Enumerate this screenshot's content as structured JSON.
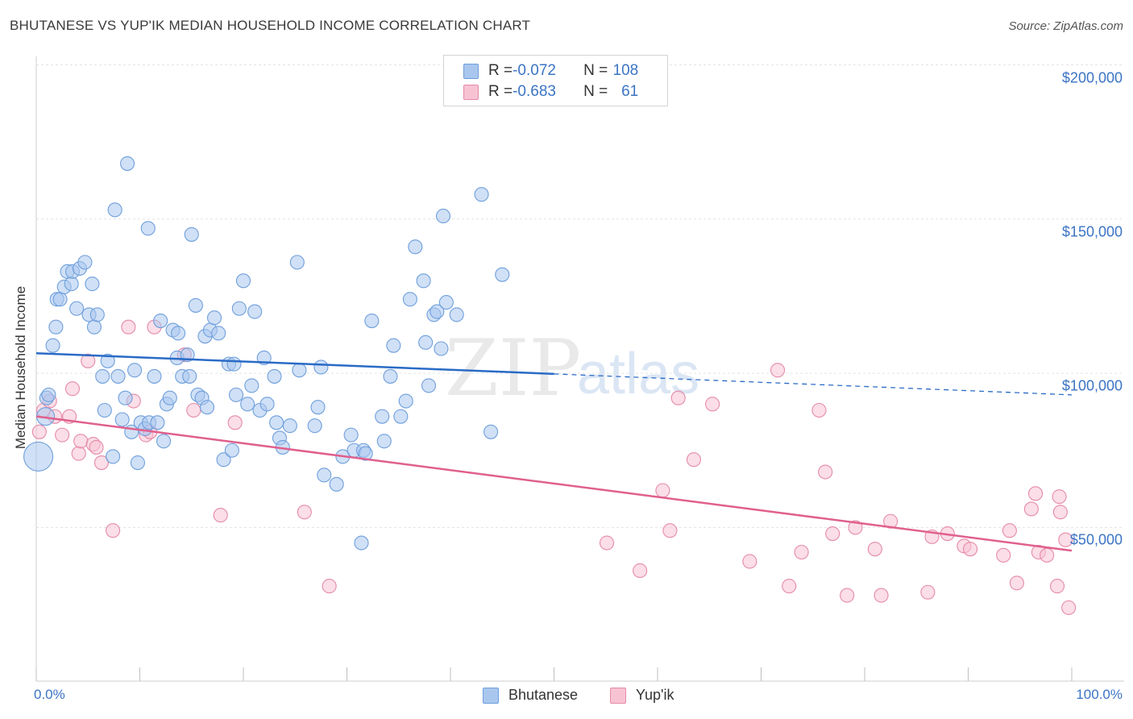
{
  "title": "BHUTANESE VS YUP'IK MEDIAN HOUSEHOLD INCOME CORRELATION CHART",
  "source": "Source: ZipAtlas.com",
  "watermark": {
    "zip": "ZIP",
    "atlas": "atlas"
  },
  "legend": {
    "rows": [
      {
        "r_label": "R = ",
        "r_value": "-0.072",
        "n_label": "N = ",
        "n_value": "108",
        "color": "#a9c7ee",
        "border": "#6f9fdc"
      },
      {
        "r_label": "R = ",
        "r_value": "-0.683",
        "n_label": "N = ",
        "n_value": "61",
        "color": "#f7c3d3",
        "border": "#e58aa8"
      }
    ]
  },
  "bottom_legend": [
    {
      "label": "Bhutanese",
      "color": "#a9c7ee",
      "border": "#6f9fdc"
    },
    {
      "label": "Yup'ik",
      "color": "#f7c3d3",
      "border": "#e58aa8"
    }
  ],
  "chart_data": {
    "type": "scatter",
    "title": "BHUTANESE VS YUP'IK MEDIAN HOUSEHOLD INCOME CORRELATION CHART",
    "xlabel": "",
    "ylabel": "Median Household Income",
    "xlim": [
      0,
      100
    ],
    "ylim": [
      0,
      210000
    ],
    "x_tick_labels": [
      "0.0%",
      "100.0%"
    ],
    "y_tick_labels": [
      "$50,000",
      "$100,000",
      "$150,000",
      "$200,000"
    ],
    "y_tick_values": [
      50000,
      100000,
      150000,
      200000
    ],
    "grid": true,
    "legend_position": "top-center",
    "colors": {
      "bhutanese": "#3b74c4",
      "yupik": "#e0608e"
    },
    "series": [
      {
        "name": "Bhutanese",
        "color": "#3b74c4",
        "trend": {
          "x0": 0,
          "y0": 106500,
          "x1": 50,
          "y1": 99800,
          "dashed_to_x": 100,
          "dashed_to_y": 93000
        },
        "points": [
          [
            0.2,
            73000
          ],
          [
            0.9,
            86000
          ],
          [
            1.0,
            92000
          ],
          [
            1.2,
            93000
          ],
          [
            1.6,
            109000
          ],
          [
            1.9,
            115000
          ],
          [
            2.0,
            124000
          ],
          [
            2.3,
            124000
          ],
          [
            2.7,
            128000
          ],
          [
            3.0,
            133000
          ],
          [
            3.4,
            129000
          ],
          [
            3.5,
            133000
          ],
          [
            3.9,
            121000
          ],
          [
            4.2,
            134000
          ],
          [
            4.7,
            136000
          ],
          [
            5.1,
            119000
          ],
          [
            5.4,
            129000
          ],
          [
            5.6,
            115000
          ],
          [
            5.9,
            119000
          ],
          [
            6.4,
            99000
          ],
          [
            6.6,
            88000
          ],
          [
            6.9,
            104000
          ],
          [
            7.4,
            73000
          ],
          [
            7.6,
            153000
          ],
          [
            7.9,
            99000
          ],
          [
            8.3,
            85000
          ],
          [
            8.6,
            92000
          ],
          [
            8.8,
            168000
          ],
          [
            9.2,
            81000
          ],
          [
            9.5,
            101000
          ],
          [
            9.8,
            71000
          ],
          [
            10.1,
            84000
          ],
          [
            10.5,
            82000
          ],
          [
            10.8,
            147000
          ],
          [
            10.9,
            84000
          ],
          [
            11.4,
            99000
          ],
          [
            11.7,
            84000
          ],
          [
            12.0,
            117000
          ],
          [
            12.3,
            78000
          ],
          [
            12.6,
            90000
          ],
          [
            12.9,
            92000
          ],
          [
            13.2,
            114000
          ],
          [
            13.6,
            105000
          ],
          [
            13.7,
            113000
          ],
          [
            14.1,
            99000
          ],
          [
            14.6,
            106000
          ],
          [
            14.8,
            99000
          ],
          [
            15.0,
            145000
          ],
          [
            15.4,
            122000
          ],
          [
            15.6,
            93000
          ],
          [
            16.0,
            92000
          ],
          [
            16.3,
            112000
          ],
          [
            16.5,
            89000
          ],
          [
            16.8,
            114000
          ],
          [
            17.2,
            118000
          ],
          [
            17.6,
            113000
          ],
          [
            18.1,
            72000
          ],
          [
            18.6,
            103000
          ],
          [
            18.9,
            75000
          ],
          [
            19.1,
            103000
          ],
          [
            19.3,
            93000
          ],
          [
            19.6,
            121000
          ],
          [
            20.0,
            130000
          ],
          [
            20.4,
            90000
          ],
          [
            20.8,
            96000
          ],
          [
            21.1,
            120000
          ],
          [
            21.6,
            88000
          ],
          [
            22.0,
            105000
          ],
          [
            22.3,
            90000
          ],
          [
            23.0,
            99000
          ],
          [
            23.2,
            84000
          ],
          [
            23.5,
            79000
          ],
          [
            23.8,
            76000
          ],
          [
            24.5,
            83000
          ],
          [
            25.2,
            136000
          ],
          [
            25.4,
            101000
          ],
          [
            26.9,
            83000
          ],
          [
            27.2,
            89000
          ],
          [
            27.5,
            102000
          ],
          [
            27.8,
            67000
          ],
          [
            29.0,
            64000
          ],
          [
            29.6,
            73000
          ],
          [
            30.4,
            80000
          ],
          [
            30.7,
            75000
          ],
          [
            31.6,
            75000
          ],
          [
            31.8,
            74000
          ],
          [
            32.4,
            117000
          ],
          [
            33.4,
            86000
          ],
          [
            33.6,
            78000
          ],
          [
            34.2,
            99000
          ],
          [
            34.5,
            109000
          ],
          [
            35.2,
            86000
          ],
          [
            35.7,
            91000
          ],
          [
            36.1,
            124000
          ],
          [
            36.6,
            141000
          ],
          [
            37.4,
            130000
          ],
          [
            37.6,
            110000
          ],
          [
            37.9,
            96000
          ],
          [
            38.4,
            119000
          ],
          [
            38.7,
            120000
          ],
          [
            39.1,
            108000
          ],
          [
            39.3,
            151000
          ],
          [
            39.6,
            123000
          ],
          [
            40.6,
            119000
          ],
          [
            43.0,
            158000
          ],
          [
            43.9,
            81000
          ],
          [
            45.0,
            132000
          ],
          [
            31.4,
            45000
          ]
        ]
      },
      {
        "name": "Yup'ik",
        "color": "#e0608e",
        "trend": {
          "x0": 0,
          "y0": 86000,
          "x1": 100,
          "y1": 42500
        },
        "points": [
          [
            0.3,
            81000
          ],
          [
            0.7,
            88000
          ],
          [
            1.3,
            91000
          ],
          [
            1.8,
            86000
          ],
          [
            2.5,
            80000
          ],
          [
            3.2,
            86000
          ],
          [
            3.5,
            95000
          ],
          [
            4.1,
            74000
          ],
          [
            4.3,
            78000
          ],
          [
            5.0,
            104000
          ],
          [
            5.5,
            77000
          ],
          [
            5.8,
            76000
          ],
          [
            6.3,
            71000
          ],
          [
            7.4,
            49000
          ],
          [
            8.9,
            115000
          ],
          [
            9.4,
            91000
          ],
          [
            10.6,
            80000
          ],
          [
            11.0,
            81000
          ],
          [
            11.4,
            115000
          ],
          [
            14.3,
            106000
          ],
          [
            15.2,
            88000
          ],
          [
            17.8,
            54000
          ],
          [
            19.2,
            84000
          ],
          [
            25.9,
            55000
          ],
          [
            28.3,
            31000
          ],
          [
            55.1,
            45000
          ],
          [
            58.3,
            36000
          ],
          [
            60.5,
            62000
          ],
          [
            61.2,
            49000
          ],
          [
            62.0,
            92000
          ],
          [
            63.5,
            72000
          ],
          [
            65.3,
            90000
          ],
          [
            68.9,
            39000
          ],
          [
            71.6,
            101000
          ],
          [
            72.7,
            31000
          ],
          [
            73.9,
            42000
          ],
          [
            75.6,
            88000
          ],
          [
            76.2,
            68000
          ],
          [
            76.9,
            48000
          ],
          [
            78.3,
            28000
          ],
          [
            79.1,
            50000
          ],
          [
            81.0,
            43000
          ],
          [
            81.6,
            28000
          ],
          [
            82.5,
            52000
          ],
          [
            86.1,
            29000
          ],
          [
            86.5,
            47000
          ],
          [
            88.0,
            48000
          ],
          [
            89.6,
            44000
          ],
          [
            90.2,
            43000
          ],
          [
            93.4,
            41000
          ],
          [
            94.0,
            49000
          ],
          [
            94.7,
            32000
          ],
          [
            96.8,
            42000
          ],
          [
            97.6,
            41000
          ],
          [
            98.6,
            31000
          ],
          [
            98.8,
            60000
          ],
          [
            99.4,
            46000
          ],
          [
            96.1,
            56000
          ],
          [
            96.5,
            61000
          ],
          [
            98.9,
            55000
          ],
          [
            99.7,
            24000
          ]
        ]
      }
    ]
  }
}
